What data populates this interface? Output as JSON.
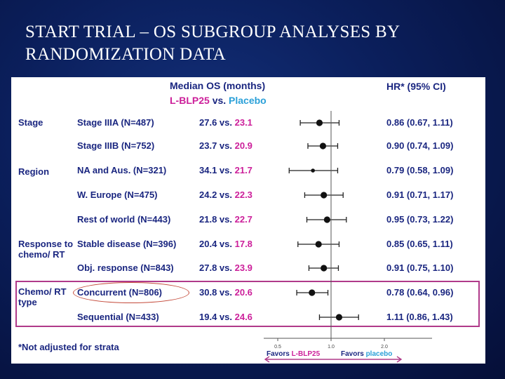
{
  "slide_title": "START TRIAL – OS  SUBGROUP ANALYSES BY RANDOMIZATION DATA",
  "header": {
    "median_os": "Median OS (months)",
    "treatment": "L-BLP25",
    "vs": "vs.",
    "control": "Placebo",
    "hr_label": "HR* (95% CI)"
  },
  "footnote": "*Not adjusted for strata",
  "favors": {
    "left_prefix": "Favors ",
    "left_arm": "L-BLP25",
    "right_prefix": "Favors ",
    "right_arm": "placebo"
  },
  "chart_data": {
    "type": "forest",
    "x_ticks": [
      "0.5",
      "1.0",
      "2.0"
    ],
    "reference_line": 1.0,
    "highlighted_category": "Chemo/ RT type",
    "rows": [
      {
        "category": "Stage",
        "subgroup": "Stage IIIA (N=487)",
        "os_treatment": "27.6",
        "os_placebo": "23.1",
        "hr": 0.86,
        "ci_low": 0.67,
        "ci_high": 1.11,
        "hr_text": "0.86 (0.67, 1.11)"
      },
      {
        "category": "",
        "subgroup": "Stage IIIB (N=752)",
        "os_treatment": "23.7",
        "os_placebo": "20.9",
        "hr": 0.9,
        "ci_low": 0.74,
        "ci_high": 1.09,
        "hr_text": "0.90 (0.74, 1.09)"
      },
      {
        "category": "Region",
        "subgroup": "NA and Aus. (N=321)",
        "os_treatment": "34.1",
        "os_placebo": "21.7",
        "hr": 0.79,
        "ci_low": 0.58,
        "ci_high": 1.09,
        "hr_text": "0.79 (0.58, 1.09)"
      },
      {
        "category": "",
        "subgroup": "W. Europe (N=475)",
        "os_treatment": "24.2",
        "os_placebo": "22.3",
        "hr": 0.91,
        "ci_low": 0.71,
        "ci_high": 1.17,
        "hr_text": "0.91 (0.71, 1.17)"
      },
      {
        "category": "",
        "subgroup": "Rest of world  (N=443)",
        "os_treatment": "21.8",
        "os_placebo": "22.7",
        "hr": 0.95,
        "ci_low": 0.73,
        "ci_high": 1.22,
        "hr_text": "0.95 (0.73, 1.22)"
      },
      {
        "category": "Response to chemo/ RT",
        "subgroup": "Stable disease (N=396)",
        "os_treatment": "20.4",
        "os_placebo": "17.8",
        "hr": 0.85,
        "ci_low": 0.65,
        "ci_high": 1.11,
        "hr_text": "0.85 (0.65, 1.11)"
      },
      {
        "category": "",
        "subgroup": "Obj. response (N=843)",
        "os_treatment": "27.8",
        "os_placebo": "23.9",
        "hr": 0.91,
        "ci_low": 0.75,
        "ci_high": 1.1,
        "hr_text": "0.91 (0.75, 1.10)"
      },
      {
        "category": "Chemo/ RT type",
        "subgroup": "Concurrent (N=806)",
        "os_treatment": "30.8",
        "os_placebo": "20.6",
        "hr": 0.78,
        "ci_low": 0.64,
        "ci_high": 0.96,
        "hr_text": "0.78 (0.64, 0.96)"
      },
      {
        "category": "",
        "subgroup": "Sequential (N=433)",
        "os_treatment": "19.4",
        "os_placebo": "24.6",
        "hr": 1.11,
        "ci_low": 0.86,
        "ci_high": 1.43,
        "hr_text": "1.11 (0.86, 1.43)"
      }
    ]
  }
}
